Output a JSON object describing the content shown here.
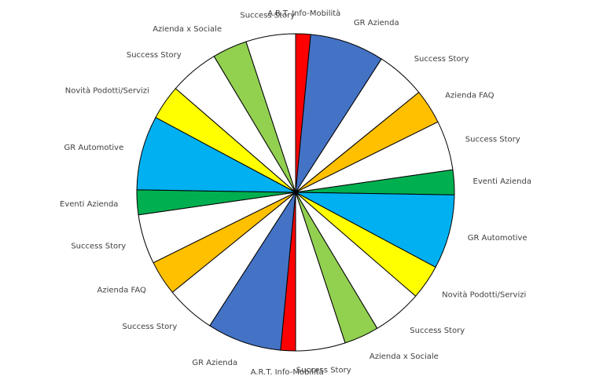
{
  "chart_data": {
    "type": "pie",
    "title": "",
    "legend": "none",
    "slices": [
      {
        "label": "A.R.T. Info-Mobilità",
        "value": 1.5,
        "color": "#ff0000"
      },
      {
        "label": "GR Azienda",
        "value": 7.5,
        "color": "#4472c4"
      },
      {
        "label": "Success Story",
        "value": 5,
        "color": "#ffffff"
      },
      {
        "label": "Azienda FAQ",
        "value": 3.5,
        "color": "#ffc000"
      },
      {
        "label": "Success Story",
        "value": 5,
        "color": "#ffffff"
      },
      {
        "label": "Eventi Azienda",
        "value": 2.5,
        "color": "#00b050"
      },
      {
        "label": "GR Automotive",
        "value": 7.5,
        "color": "#00b0f0"
      },
      {
        "label": "Novità Podotti/Servizi",
        "value": 3.5,
        "color": "#ffff00"
      },
      {
        "label": "Success Story",
        "value": 5,
        "color": "#ffffff"
      },
      {
        "label": "Azienda x Sociale",
        "value": 3.5,
        "color": "#92d050"
      },
      {
        "label": "Success Story",
        "value": 5,
        "color": "#ffffff"
      },
      {
        "label": "A.R.T. Info-Mobilità",
        "value": 1.5,
        "color": "#ff0000"
      },
      {
        "label": "GR Azienda",
        "value": 7.5,
        "color": "#4472c4"
      },
      {
        "label": "Success Story",
        "value": 5,
        "color": "#ffffff"
      },
      {
        "label": "Azienda FAQ",
        "value": 3.5,
        "color": "#ffc000"
      },
      {
        "label": "Success Story",
        "value": 5,
        "color": "#ffffff"
      },
      {
        "label": "Eventi Azienda",
        "value": 2.5,
        "color": "#00b050"
      },
      {
        "label": "GR Automotive",
        "value": 7.5,
        "color": "#00b0f0"
      },
      {
        "label": "Novità Podotti/Servizi",
        "value": 3.5,
        "color": "#ffff00"
      },
      {
        "label": "Success Story",
        "value": 5,
        "color": "#ffffff"
      },
      {
        "label": "Azienda x Sociale",
        "value": 3.5,
        "color": "#92d050"
      },
      {
        "label": "Success Story",
        "value": 5,
        "color": "#ffffff"
      }
    ]
  }
}
